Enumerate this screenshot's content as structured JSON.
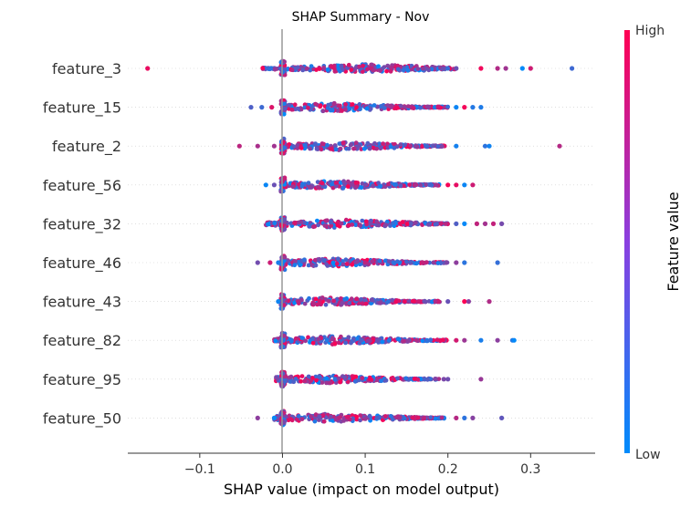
{
  "chart_data": {
    "type": "scatter",
    "title": "SHAP Summary - Nov",
    "xlabel": "SHAP value (impact on model output)",
    "ylabel": "",
    "xlim": [
      -0.187,
      0.378
    ],
    "x_ticks": [
      -0.1,
      0.0,
      0.1,
      0.2,
      0.3
    ],
    "x_tick_labels": [
      "−0.1",
      "0.0",
      "0.1",
      "0.2",
      "0.3"
    ],
    "colorbar": {
      "label": "Feature value",
      "high_label": "High",
      "low_label": "Low",
      "low_color": "#008bfb",
      "high_color": "#ff0052"
    },
    "grid": false,
    "features": [
      {
        "name": "feature_3",
        "min": -0.025,
        "max": 0.21,
        "center": 0.1,
        "outliers": [
          -0.163,
          0.3,
          0.27,
          0.29,
          0.35,
          0.21,
          0.24,
          0.26
        ]
      },
      {
        "name": "feature_15",
        "min": 0.0,
        "max": 0.2,
        "center": 0.06,
        "outliers": [
          -0.038,
          -0.025,
          -0.013,
          0.21,
          0.22,
          0.23,
          0.24
        ]
      },
      {
        "name": "feature_2",
        "min": 0.0,
        "max": 0.2,
        "center": 0.07,
        "outliers": [
          -0.052,
          -0.03,
          -0.01,
          0.21,
          0.245,
          0.25,
          0.335
        ]
      },
      {
        "name": "feature_56",
        "min": 0.0,
        "max": 0.19,
        "center": 0.06,
        "outliers": [
          -0.02,
          -0.01,
          0.2,
          0.21,
          0.22,
          0.23
        ]
      },
      {
        "name": "feature_32",
        "min": -0.02,
        "max": 0.2,
        "center": 0.07,
        "outliers": [
          0.21,
          0.22,
          0.235,
          0.245,
          0.255,
          0.265
        ]
      },
      {
        "name": "feature_46",
        "min": 0.0,
        "max": 0.2,
        "center": 0.06,
        "outliers": [
          -0.03,
          -0.015,
          -0.005,
          0.21,
          0.22,
          0.26
        ]
      },
      {
        "name": "feature_43",
        "min": 0.0,
        "max": 0.19,
        "center": 0.05,
        "outliers": [
          -0.005,
          0.2,
          0.22,
          0.225,
          0.25
        ]
      },
      {
        "name": "feature_82",
        "min": -0.01,
        "max": 0.2,
        "center": 0.06,
        "outliers": [
          0.21,
          0.22,
          0.24,
          0.26,
          0.278,
          0.28
        ]
      },
      {
        "name": "feature_95",
        "min": -0.008,
        "max": 0.19,
        "center": 0.05,
        "outliers": [
          0.195,
          0.2,
          0.24
        ]
      },
      {
        "name": "feature_50",
        "min": -0.01,
        "max": 0.2,
        "center": 0.06,
        "outliers": [
          -0.03,
          -0.01,
          0.21,
          0.22,
          0.23,
          0.265
        ]
      }
    ]
  }
}
